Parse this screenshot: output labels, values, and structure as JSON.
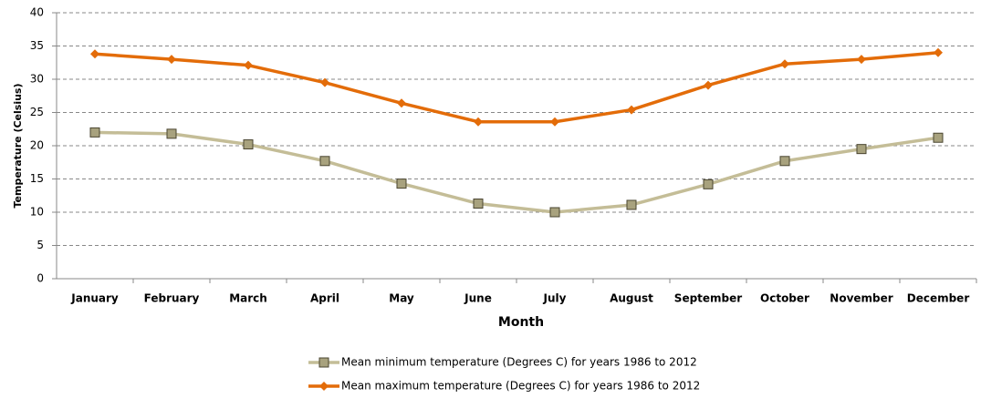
{
  "chart_data": {
    "type": "line",
    "xlabel": "Month",
    "ylabel": "Temperature (Celsius)",
    "categories": [
      "January",
      "February",
      "March",
      "April",
      "May",
      "June",
      "July",
      "August",
      "September",
      "October",
      "November",
      "December"
    ],
    "series": [
      {
        "name": "Mean minimum temperature (Degrees C) for years 1986 to 2012",
        "color": "#c4bd97",
        "marker_color": "#a8a27e",
        "marker": "square",
        "values": [
          22.0,
          21.8,
          20.2,
          17.7,
          14.3,
          11.3,
          10.0,
          11.1,
          14.2,
          17.7,
          19.5,
          21.2
        ]
      },
      {
        "name": "Mean maximum temperature (Degrees C) for years 1986 to 2012",
        "color": "#e36c09",
        "marker_color": "#e36c09",
        "marker": "diamond",
        "values": [
          33.8,
          33.0,
          32.1,
          29.5,
          26.4,
          23.6,
          23.6,
          25.4,
          29.1,
          32.3,
          33.0,
          34.0
        ]
      }
    ],
    "ylim": [
      0,
      40
    ],
    "yticks": [
      0,
      5,
      10,
      15,
      20,
      25,
      30,
      35,
      40
    ],
    "grid": true,
    "legend": "bottom"
  }
}
